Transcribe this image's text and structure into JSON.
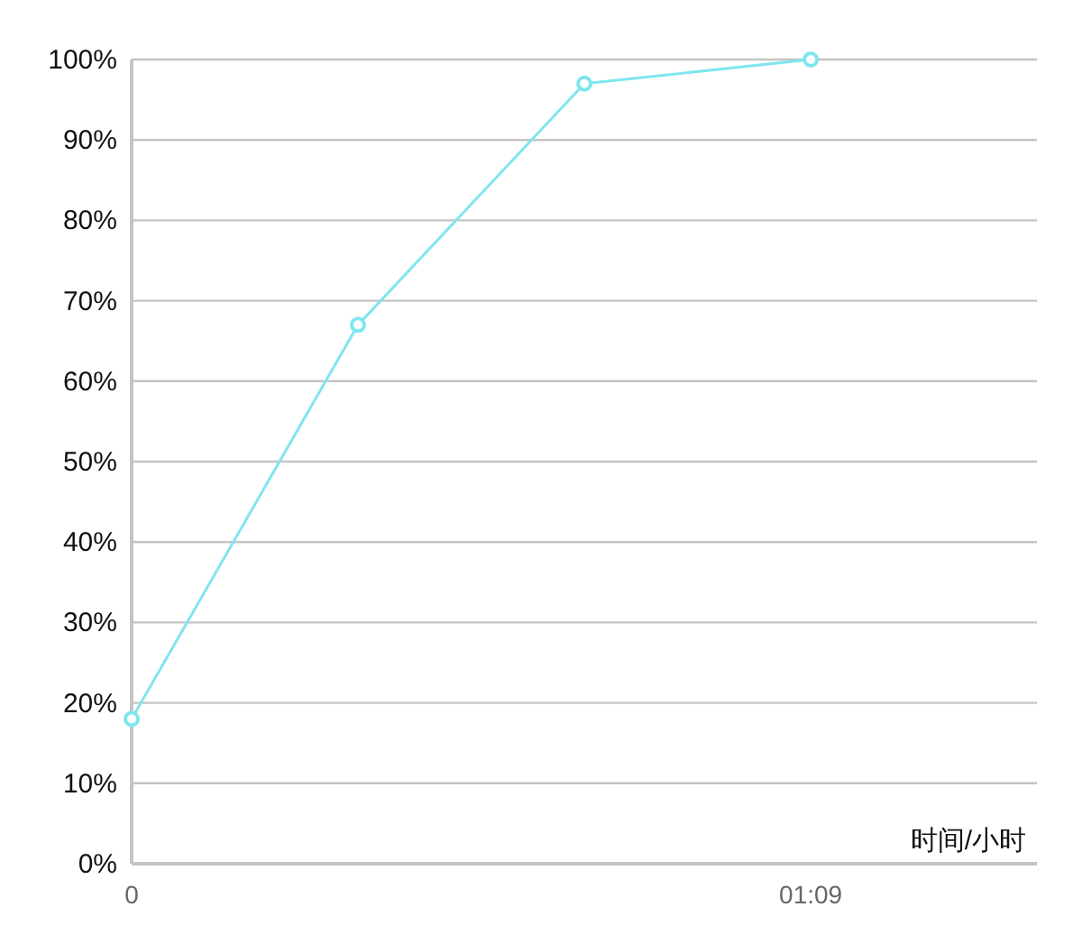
{
  "chart_data": {
    "type": "line",
    "xlabel": "时间/小时",
    "x": [
      0,
      0.3833,
      0.7667,
      1.15
    ],
    "series": [
      {
        "color": "#7fe6ee",
        "values": [
          18,
          67,
          97,
          100
        ]
      }
    ],
    "xlim": [
      0,
      1.533
    ],
    "ylim": [
      0,
      100
    ],
    "xticks": [
      {
        "value": 0,
        "label": "0"
      },
      {
        "value": 1.15,
        "label": "01:09"
      }
    ],
    "yticks": [
      {
        "value": 0,
        "label": "0%"
      },
      {
        "value": 10,
        "label": "10%"
      },
      {
        "value": 20,
        "label": "20%"
      },
      {
        "value": 30,
        "label": "30%"
      },
      {
        "value": 40,
        "label": "40%"
      },
      {
        "value": 50,
        "label": "50%"
      },
      {
        "value": 60,
        "label": "60%"
      },
      {
        "value": 70,
        "label": "70%"
      },
      {
        "value": 80,
        "label": "80%"
      },
      {
        "value": 90,
        "label": "90%"
      },
      {
        "value": 100,
        "label": "100%"
      }
    ],
    "grid": "y",
    "marker": "circle",
    "line_style": "solid"
  }
}
